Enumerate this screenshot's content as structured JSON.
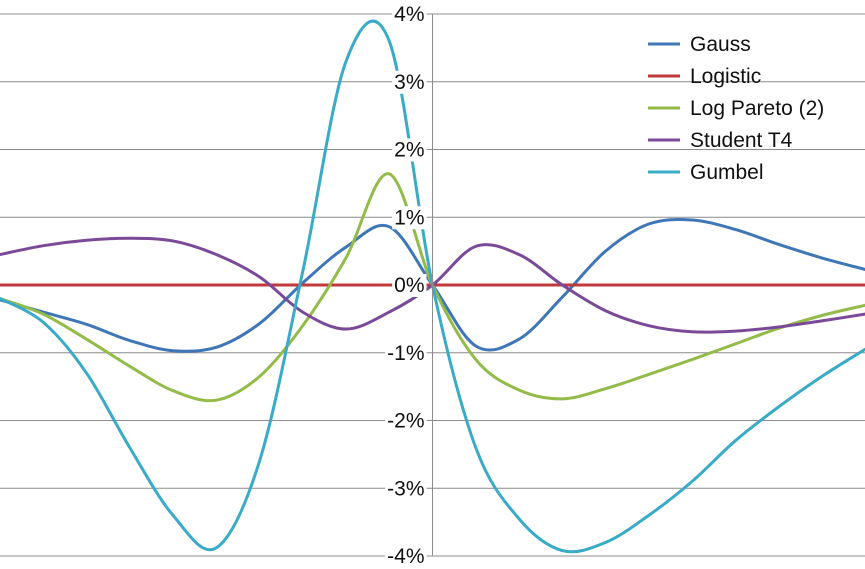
{
  "chart_data": {
    "type": "line",
    "title": "",
    "xlabel": "",
    "ylabel": "",
    "ylim": [
      -4,
      4
    ],
    "xlim": [
      -10,
      10
    ],
    "x_axis_at_zero": true,
    "y_axis_at_zero": true,
    "grid": "horizontal",
    "legend_position": "top-right",
    "y_ticks": [
      {
        "value": 4,
        "label": "4%"
      },
      {
        "value": 3,
        "label": "3%"
      },
      {
        "value": 2,
        "label": "2%"
      },
      {
        "value": 1,
        "label": "1%"
      },
      {
        "value": 0,
        "label": "0%"
      },
      {
        "value": -1,
        "label": "-1%"
      },
      {
        "value": -2,
        "label": "-2%"
      },
      {
        "value": -3,
        "label": "-3%"
      },
      {
        "value": -4,
        "label": "-4%"
      }
    ],
    "x": [
      -10,
      -9,
      -8,
      -7,
      -6,
      -5,
      -4,
      -3,
      -2,
      -1,
      0,
      1,
      2,
      3,
      4,
      5,
      6,
      7,
      8,
      9,
      10
    ],
    "series": [
      {
        "name": "Gauss",
        "color": "#3f76b6",
        "values": [
          -0.22,
          -0.4,
          -0.58,
          -0.82,
          -0.97,
          -0.92,
          -0.57,
          0.03,
          0.56,
          0.86,
          0.0,
          -0.9,
          -0.8,
          -0.18,
          0.5,
          0.9,
          0.96,
          0.82,
          0.6,
          0.4,
          0.23
        ]
      },
      {
        "name": "Logistic",
        "color": "#c0393b",
        "values": [
          0,
          0,
          0,
          0,
          0,
          0,
          0,
          0,
          0,
          0,
          0,
          0,
          0,
          0,
          0,
          0,
          0,
          0,
          0,
          0,
          0
        ]
      },
      {
        "name": "Log Pareto (2)",
        "color": "#93bb4a",
        "values": [
          -0.2,
          -0.43,
          -0.8,
          -1.2,
          -1.56,
          -1.7,
          -1.35,
          -0.6,
          0.4,
          1.64,
          0.0,
          -1.1,
          -1.55,
          -1.68,
          -1.53,
          -1.32,
          -1.1,
          -0.87,
          -0.64,
          -0.45,
          -0.3
        ]
      },
      {
        "name": "Student T4",
        "color": "#7a4a98",
        "values": [
          0.45,
          0.58,
          0.66,
          0.69,
          0.65,
          0.45,
          0.12,
          -0.4,
          -0.65,
          -0.4,
          0.0,
          0.57,
          0.45,
          0.0,
          -0.38,
          -0.6,
          -0.69,
          -0.68,
          -0.62,
          -0.53,
          -0.43
        ]
      },
      {
        "name": "Gumbel",
        "color": "#3aabc6",
        "values": [
          -0.2,
          -0.55,
          -1.3,
          -2.4,
          -3.4,
          -3.88,
          -2.6,
          0.2,
          3.3,
          3.6,
          0.0,
          -2.4,
          -3.45,
          -3.92,
          -3.8,
          -3.4,
          -2.9,
          -2.3,
          -1.8,
          -1.35,
          -0.95
        ]
      }
    ]
  }
}
